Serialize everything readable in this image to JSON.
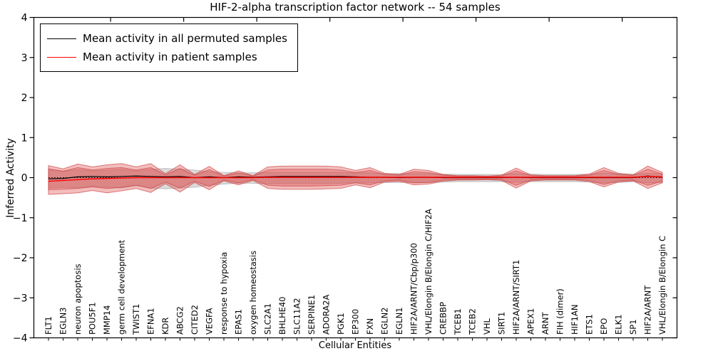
{
  "title": "HIF-2-alpha transcription factor network -- 54 samples",
  "legend": {
    "items": [
      {
        "label": "Mean activity in all permuted samples",
        "color": "#000000"
      },
      {
        "label": "Mean activity in patient samples",
        "color": "#ff0000"
      }
    ]
  },
  "colors": {
    "patient_line": "#ff0000",
    "permuted_line": "#000000",
    "patient_band_fill": "rgba(222,82,82,0.38)",
    "patient_band_edge": "rgba(205,60,60,0.65)",
    "permuted_band_fill": "rgba(135,135,135,0.30)",
    "permuted_band_edge": "rgba(120,120,120,0.40)",
    "axis": "#000000"
  },
  "chart_data": {
    "type": "line",
    "title": "HIF-2-alpha transcription factor network -- 54 samples",
    "xlabel": "Cellular Entities",
    "ylabel": "Inferred Activity",
    "ylim": [
      -4,
      4
    ],
    "yticks": [
      4,
      3,
      2,
      1,
      0,
      -1,
      -2,
      -3,
      -4
    ],
    "grid": false,
    "legend_position": "upper left",
    "categories": [
      "FLT1",
      "EGLN3",
      "neuron apoptosis",
      "POU5F1",
      "MMP14",
      "germ cell development",
      "TWIST1",
      "EFNA1",
      "KDR",
      "ABCG2",
      "CITED2",
      "VEGFA",
      "response to hypoxia",
      "EPAS1",
      "oxygen homeostasis",
      "SLC2A1",
      "BHLHE40",
      "SLC11A2",
      "SERPINE1",
      "ADORA2A",
      "PGK1",
      "EP300",
      "FXN",
      "EGLN2",
      "EGLN1",
      "HIF2A/ARNT/Cbp/p300",
      "VHL/Elongin B/Elongin C/HIF2A",
      "CREBBP",
      "TCEB1",
      "TCEB2",
      "VHL",
      "SIRT1",
      "HIF2A/ARNT/SIRT1",
      "APEX1",
      "ARNT",
      "FIH (dimer)",
      "HIF1AN",
      "ETS1",
      "EPO",
      "ELK1",
      "SP1",
      "HIF2A/ARNT",
      "VHL/Elongin B/Elongin C"
    ],
    "series": [
      {
        "name": "Mean activity in all permuted samples",
        "color": "#000000",
        "values": [
          -0.03,
          -0.02,
          0.02,
          0.03,
          0.02,
          0.03,
          0.04,
          0.03,
          0.02,
          0.03,
          0.0,
          0.02,
          0.0,
          0.02,
          0.01,
          0.02,
          0.03,
          0.03,
          0.03,
          0.03,
          0.03,
          0.02,
          0.01,
          0.01,
          0.0,
          0.01,
          0.01,
          0.0,
          0.0,
          0.0,
          0.0,
          0.0,
          0.01,
          0.0,
          0.0,
          0.0,
          0.0,
          0.0,
          0.0,
          0.0,
          0.0,
          0.04,
          0.01
        ]
      },
      {
        "name": "Mean activity in patient samples",
        "color": "#ff0000",
        "values": [
          -0.09,
          -0.07,
          -0.05,
          -0.03,
          -0.02,
          -0.01,
          0.0,
          0.0,
          0.0,
          0.0,
          0.0,
          0.0,
          0.0,
          0.0,
          0.0,
          0.01,
          0.01,
          0.01,
          0.01,
          0.01,
          0.01,
          0.01,
          0.01,
          0.01,
          0.01,
          0.01,
          0.01,
          0.01,
          0.01,
          0.01,
          0.01,
          0.01,
          0.01,
          0.01,
          0.01,
          0.01,
          0.01,
          0.01,
          0.01,
          0.01,
          0.01,
          0.03,
          0.02
        ]
      }
    ],
    "bands": [
      {
        "name": "permuted-range",
        "upper": [
          0.2,
          0.17,
          0.2,
          0.17,
          0.19,
          0.21,
          0.17,
          0.21,
          0.23,
          0.21,
          0.19,
          0.15,
          0.13,
          0.12,
          0.12,
          0.13,
          0.13,
          0.13,
          0.13,
          0.13,
          0.13,
          0.12,
          0.12,
          0.1,
          0.1,
          0.1,
          0.1,
          0.09,
          0.08,
          0.08,
          0.08,
          0.08,
          0.1,
          0.09,
          0.08,
          0.08,
          0.08,
          0.09,
          0.11,
          0.1,
          0.09,
          0.11,
          0.1
        ],
        "lower": [
          -0.26,
          -0.24,
          -0.26,
          -0.22,
          -0.24,
          -0.26,
          -0.2,
          -0.26,
          -0.28,
          -0.26,
          -0.24,
          -0.19,
          -0.16,
          -0.14,
          -0.14,
          -0.15,
          -0.15,
          -0.15,
          -0.15,
          -0.15,
          -0.14,
          -0.13,
          -0.13,
          -0.12,
          -0.12,
          -0.12,
          -0.12,
          -0.11,
          -0.1,
          -0.1,
          -0.1,
          -0.1,
          -0.12,
          -0.1,
          -0.1,
          -0.1,
          -0.1,
          -0.11,
          -0.13,
          -0.12,
          -0.1,
          -0.13,
          -0.12
        ]
      },
      {
        "name": "patient-range-outer",
        "upper": [
          0.3,
          0.22,
          0.34,
          0.27,
          0.32,
          0.35,
          0.27,
          0.35,
          0.1,
          0.32,
          0.08,
          0.28,
          0.05,
          0.17,
          0.05,
          0.27,
          0.29,
          0.29,
          0.29,
          0.29,
          0.27,
          0.18,
          0.25,
          0.11,
          0.08,
          0.21,
          0.18,
          0.08,
          0.05,
          0.05,
          0.04,
          0.06,
          0.24,
          0.07,
          0.05,
          0.05,
          0.05,
          0.09,
          0.25,
          0.11,
          0.07,
          0.29,
          0.13
        ],
        "lower": [
          -0.42,
          -0.4,
          -0.38,
          -0.32,
          -0.38,
          -0.33,
          -0.27,
          -0.37,
          -0.15,
          -0.36,
          -0.12,
          -0.3,
          -0.08,
          -0.18,
          -0.07,
          -0.27,
          -0.29,
          -0.29,
          -0.29,
          -0.28,
          -0.27,
          -0.18,
          -0.25,
          -0.11,
          -0.09,
          -0.18,
          -0.16,
          -0.09,
          -0.06,
          -0.06,
          -0.05,
          -0.07,
          -0.26,
          -0.08,
          -0.06,
          -0.06,
          -0.06,
          -0.1,
          -0.23,
          -0.11,
          -0.08,
          -0.27,
          -0.13
        ]
      },
      {
        "name": "patient-range-inner",
        "upper": [
          0.22,
          0.16,
          0.25,
          0.19,
          0.23,
          0.25,
          0.19,
          0.25,
          0.07,
          0.23,
          0.06,
          0.2,
          0.04,
          0.12,
          0.04,
          0.19,
          0.21,
          0.21,
          0.21,
          0.21,
          0.19,
          0.13,
          0.18,
          0.08,
          0.06,
          0.15,
          0.13,
          0.06,
          0.04,
          0.04,
          0.03,
          0.04,
          0.17,
          0.05,
          0.04,
          0.04,
          0.04,
          0.06,
          0.18,
          0.08,
          0.05,
          0.21,
          0.09
        ],
        "lower": [
          -0.3,
          -0.29,
          -0.27,
          -0.23,
          -0.27,
          -0.24,
          -0.19,
          -0.27,
          -0.11,
          -0.26,
          -0.09,
          -0.22,
          -0.06,
          -0.13,
          -0.05,
          -0.19,
          -0.21,
          -0.21,
          -0.21,
          -0.2,
          -0.19,
          -0.13,
          -0.18,
          -0.08,
          -0.06,
          -0.13,
          -0.12,
          -0.06,
          -0.04,
          -0.04,
          -0.04,
          -0.05,
          -0.19,
          -0.06,
          -0.04,
          -0.04,
          -0.04,
          -0.07,
          -0.17,
          -0.08,
          -0.06,
          -0.19,
          -0.09
        ]
      }
    ],
    "zero_reference_line": true
  }
}
